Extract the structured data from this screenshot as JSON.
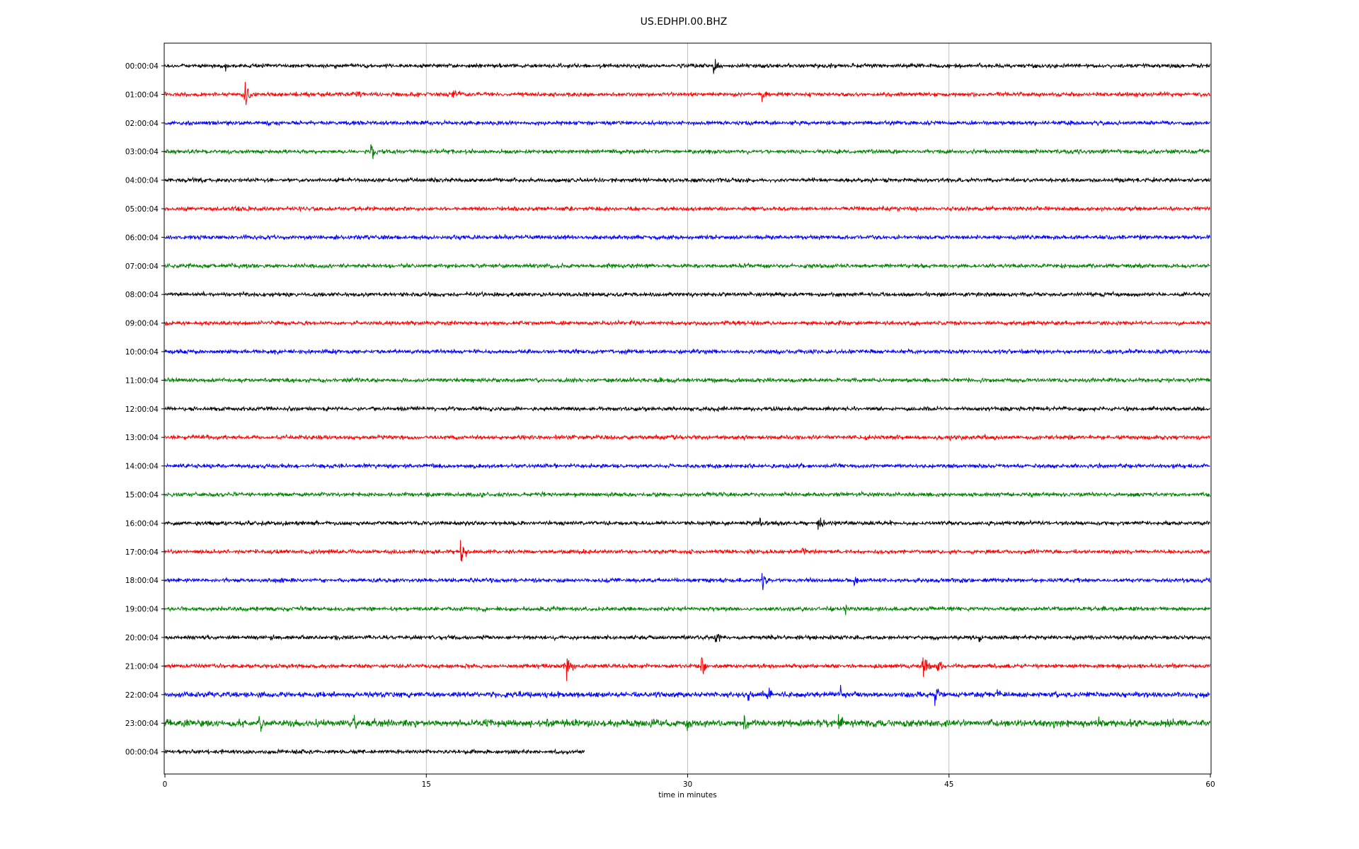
{
  "chart_data": {
    "type": "line",
    "title": "US.EDHPI.00.BHZ",
    "xlabel": "time in minutes",
    "ylabel": "",
    "xlim": [
      0,
      60
    ],
    "xticks": [
      "0",
      "15",
      "30",
      "45",
      "60"
    ],
    "grid": "vertical",
    "row_labels": [
      "00:00:04",
      "01:00:04",
      "02:00:04",
      "03:00:04",
      "04:00:04",
      "05:00:04",
      "06:00:04",
      "07:00:04",
      "08:00:04",
      "09:00:04",
      "10:00:04",
      "11:00:04",
      "12:00:04",
      "13:00:04",
      "14:00:04",
      "15:00:04",
      "16:00:04",
      "17:00:04",
      "18:00:04",
      "19:00:04",
      "20:00:04",
      "21:00:04",
      "22:00:04",
      "23:00:04",
      "00:00:04"
    ],
    "trace_colors": [
      "#000000",
      "#ff0000",
      "#0000ff",
      "#008000"
    ],
    "last_trace_end_minute": 24.1,
    "events": [
      {
        "row": 0,
        "minute": 31.5,
        "amp": 1.0
      },
      {
        "row": 0,
        "minute": 3.5,
        "amp": 0.3
      },
      {
        "row": 1,
        "minute": 4.6,
        "amp": 0.8
      },
      {
        "row": 1,
        "minute": 8.0,
        "amp": 0.3
      },
      {
        "row": 1,
        "minute": 11.0,
        "amp": 0.35
      },
      {
        "row": 1,
        "minute": 16.5,
        "amp": 0.7
      },
      {
        "row": 1,
        "minute": 34.3,
        "amp": 0.5
      },
      {
        "row": 3,
        "minute": 11.8,
        "amp": 0.75
      },
      {
        "row": 16,
        "minute": 34.0,
        "amp": 0.7
      },
      {
        "row": 16,
        "minute": 37.5,
        "amp": 0.6
      },
      {
        "row": 17,
        "minute": 17.0,
        "amp": 0.9
      },
      {
        "row": 17,
        "minute": 36.6,
        "amp": 0.4
      },
      {
        "row": 18,
        "minute": 34.3,
        "amp": 0.8
      },
      {
        "row": 18,
        "minute": 39.6,
        "amp": 0.5
      },
      {
        "row": 19,
        "minute": 18.2,
        "amp": 0.3
      },
      {
        "row": 19,
        "minute": 39.0,
        "amp": 0.5
      },
      {
        "row": 20,
        "minute": 31.6,
        "amp": 0.8
      },
      {
        "row": 20,
        "minute": 46.7,
        "amp": 0.5
      },
      {
        "row": 21,
        "minute": 23.1,
        "amp": 0.8
      },
      {
        "row": 21,
        "minute": 30.8,
        "amp": 0.8
      },
      {
        "row": 21,
        "minute": 43.5,
        "amp": 0.9
      },
      {
        "row": 21,
        "minute": 44.3,
        "amp": 0.6
      },
      {
        "row": 22,
        "minute": 33.5,
        "amp": 0.6
      },
      {
        "row": 22,
        "minute": 34.6,
        "amp": 0.6
      },
      {
        "row": 22,
        "minute": 38.8,
        "amp": 0.5
      },
      {
        "row": 22,
        "minute": 44.2,
        "amp": 0.6
      },
      {
        "row": 22,
        "minute": 47.8,
        "amp": 0.5
      },
      {
        "row": 22,
        "minute": 59.2,
        "amp": 0.4
      },
      {
        "row": 23,
        "minute": 5.4,
        "amp": 0.9
      },
      {
        "row": 23,
        "minute": 10.8,
        "amp": 0.7
      },
      {
        "row": 23,
        "minute": 11.9,
        "amp": 0.6
      },
      {
        "row": 23,
        "minute": 30.0,
        "amp": 0.7
      },
      {
        "row": 23,
        "minute": 33.2,
        "amp": 0.9
      },
      {
        "row": 23,
        "minute": 38.7,
        "amp": 0.8
      },
      {
        "row": 23,
        "minute": 53.6,
        "amp": 0.5
      }
    ]
  }
}
